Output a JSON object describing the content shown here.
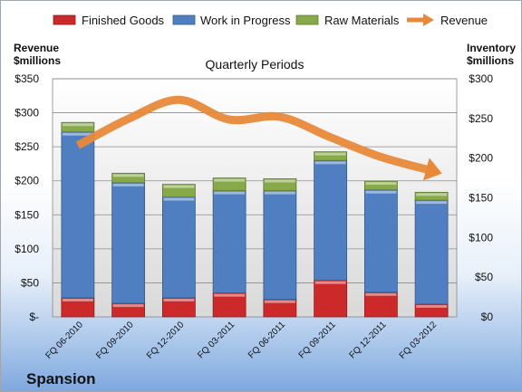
{
  "chart_data": {
    "type": "bar",
    "stacked": true,
    "title": "Quarterly Periods",
    "left_axis": {
      "label_line1": "Revenue",
      "label_line2": "$millions",
      "min": 0,
      "max": 350,
      "step": 50
    },
    "right_axis": {
      "label_line1": "Inventory",
      "label_line2": "$millions",
      "min": 0,
      "max": 300,
      "step": 50
    },
    "left_ticks": [
      "$-",
      "$50",
      "$100",
      "$150",
      "$200",
      "$250",
      "$300",
      "$350"
    ],
    "right_ticks": [
      "$0",
      "$50",
      "$100",
      "$150",
      "$200",
      "$250",
      "$300"
    ],
    "categories": [
      "FQ 06-2010",
      "FQ 09-2010",
      "FQ 12-2010",
      "FQ 03-2011",
      "FQ 06-2011",
      "FQ 09-2011",
      "FQ 12-2011",
      "FQ 03-2012"
    ],
    "series": [
      {
        "name": "Finished Goods",
        "axis": "right",
        "color": "#cc2a2a",
        "values": [
          24,
          17,
          24,
          30,
          22,
          46,
          31,
          16
        ]
      },
      {
        "name": "Work in Progress",
        "axis": "right",
        "color": "#4f7fc0",
        "values": [
          209,
          152,
          127,
          129,
          137,
          151,
          129,
          131
        ]
      },
      {
        "name": "Raw Materials",
        "axis": "right",
        "color": "#87a94a",
        "values": [
          12,
          12,
          16,
          16,
          15,
          11,
          11,
          10
        ]
      },
      {
        "name": "Revenue",
        "axis": "left",
        "type": "line",
        "color": "#e8893a",
        "values": [
          252,
          291,
          319,
          290,
          294,
          264,
          235,
          215
        ]
      }
    ],
    "legend_position": "top",
    "grid": true
  },
  "brand": "Spansion"
}
